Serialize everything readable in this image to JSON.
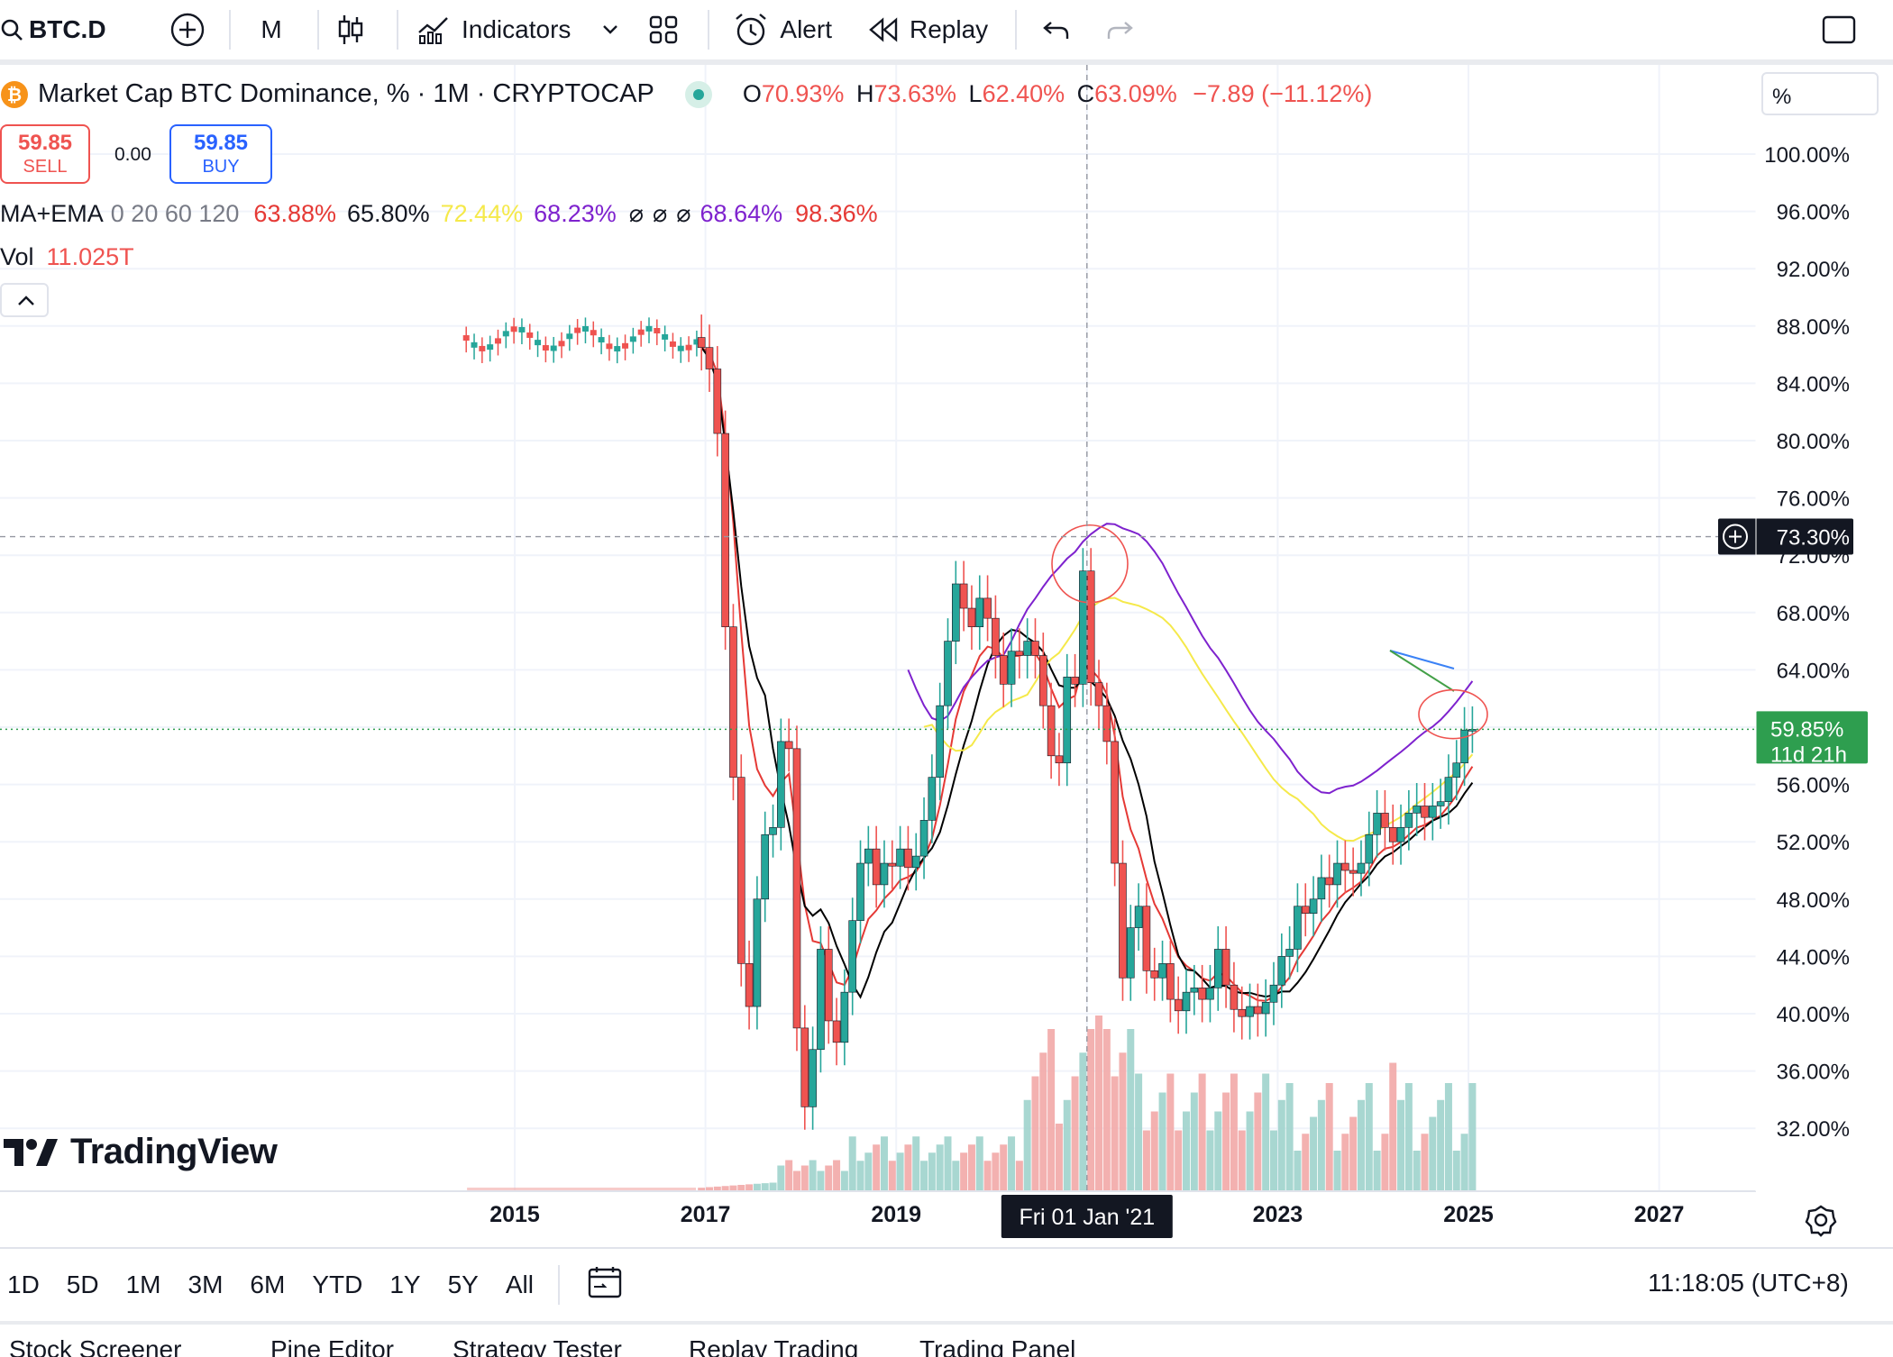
{
  "toolbar": {
    "symbol": "BTC.D",
    "interval": "M",
    "indicators_label": "Indicators",
    "alert_label": "Alert",
    "replay_label": "Replay"
  },
  "legend": {
    "title": "Market Cap BTC Dominance, % · 1M · CRYPTOCAP",
    "open_label": "O",
    "open": "70.93%",
    "high_label": "H",
    "high": "73.63%",
    "low_label": "L",
    "low": "62.40%",
    "close_label": "C",
    "close": "63.09%",
    "change": "−7.89 (−11.12%)",
    "sell_price": "59.85",
    "sell_label": "SELL",
    "spread": "0.00",
    "buy_price": "59.85",
    "buy_label": "BUY",
    "ma_label": "MA+EMA",
    "ma_params": "0 20 60 120",
    "ma_values": [
      "63.88%",
      "65.80%",
      "72.44%",
      "68.23%",
      "68.64%",
      "98.36%"
    ],
    "vol_label": "Vol",
    "vol_value": "11.025T",
    "scale_mode": "%"
  },
  "colors": {
    "up": "#26a69a",
    "down": "#ef5350",
    "ma1": "#e53935",
    "ma2": "#000000",
    "ma3": "#f5e94a",
    "ma4": "#7e22ce",
    "ma5": "#3b82f6",
    "ma6": "#43a047",
    "vol_up": "#9fd3cc",
    "vol_down": "#f2a9a7",
    "price_line": "#2e9e4f"
  },
  "price_axis": {
    "ticks": [
      "100.00%",
      "96.00%",
      "92.00%",
      "88.00%",
      "84.00%",
      "80.00%",
      "76.00%",
      "72.00%",
      "68.00%",
      "64.00%",
      "60.00%",
      "56.00%",
      "52.00%",
      "48.00%",
      "44.00%",
      "40.00%",
      "36.00%",
      "32.00%"
    ],
    "crosshair_label": "73.30%",
    "current_label": "59.85%",
    "countdown": "11d 21h"
  },
  "time_axis": {
    "ticks": [
      "2015",
      "2017",
      "2019",
      "2023",
      "2025",
      "2027"
    ],
    "crosshair_label": "Fri 01 Jan '21"
  },
  "watermark": "TradingView",
  "bottom": {
    "ranges": [
      "1D",
      "5D",
      "1M",
      "3M",
      "6M",
      "YTD",
      "1Y",
      "5Y",
      "All"
    ],
    "clock": "11:18:05 (UTC+8)"
  },
  "panels": [
    "Stock Screener",
    "Pine Editor",
    "Strategy Tester",
    "Replay Trading",
    "Trading Panel"
  ],
  "chart_data": {
    "type": "candlestick",
    "title": "Market Cap BTC Dominance, % · 1M · CRYPTOCAP",
    "ylim": [
      30,
      103
    ],
    "y_unit": "%",
    "x_ticks": [
      "2015",
      "2017",
      "2019",
      "2023",
      "2025",
      "2027"
    ],
    "series": [
      {
        "name": "BTC.D",
        "points": [
          {
            "d": "2016-12",
            "o": 87.2,
            "c": 86.5
          },
          {
            "d": "2017-01",
            "o": 86.5,
            "c": 85.0
          },
          {
            "d": "2017-02",
            "o": 85.0,
            "c": 80.5
          },
          {
            "d": "2017-03",
            "o": 80.5,
            "c": 67.0
          },
          {
            "d": "2017-04",
            "o": 67.0,
            "c": 56.5
          },
          {
            "d": "2017-05",
            "o": 56.5,
            "c": 43.5
          },
          {
            "d": "2017-06",
            "o": 43.5,
            "c": 40.5
          },
          {
            "d": "2017-07",
            "o": 40.5,
            "c": 48.0
          },
          {
            "d": "2017-08",
            "o": 48.0,
            "c": 52.5
          },
          {
            "d": "2017-09",
            "o": 52.5,
            "c": 53.0
          },
          {
            "d": "2017-10",
            "o": 53.0,
            "c": 59.0
          },
          {
            "d": "2017-11",
            "o": 59.0,
            "c": 58.5
          },
          {
            "d": "2017-12",
            "o": 58.5,
            "c": 39.0
          },
          {
            "d": "2018-01",
            "o": 39.0,
            "c": 33.5
          },
          {
            "d": "2018-02",
            "o": 33.5,
            "c": 37.5
          },
          {
            "d": "2018-03",
            "o": 37.5,
            "c": 44.5
          },
          {
            "d": "2018-04",
            "o": 44.5,
            "c": 39.5
          },
          {
            "d": "2018-05",
            "o": 39.5,
            "c": 38.0
          },
          {
            "d": "2018-06",
            "o": 38.0,
            "c": 41.5
          },
          {
            "d": "2018-07",
            "o": 41.5,
            "c": 46.5
          },
          {
            "d": "2018-08",
            "o": 46.5,
            "c": 50.5
          },
          {
            "d": "2018-09",
            "o": 50.5,
            "c": 51.5
          },
          {
            "d": "2018-10",
            "o": 51.5,
            "c": 49.0
          },
          {
            "d": "2018-11",
            "o": 49.0,
            "c": 50.5
          },
          {
            "d": "2018-12",
            "o": 50.5,
            "c": 50.3
          },
          {
            "d": "2019-01",
            "o": 50.3,
            "c": 51.5
          },
          {
            "d": "2019-02",
            "o": 51.5,
            "c": 50.2
          },
          {
            "d": "2019-03",
            "o": 50.2,
            "c": 51.0
          },
          {
            "d": "2019-04",
            "o": 51.0,
            "c": 53.5
          },
          {
            "d": "2019-05",
            "o": 53.5,
            "c": 56.5
          },
          {
            "d": "2019-06",
            "o": 56.5,
            "c": 61.5
          },
          {
            "d": "2019-07",
            "o": 61.5,
            "c": 66.0
          },
          {
            "d": "2019-08",
            "o": 66.0,
            "c": 70.0
          },
          {
            "d": "2019-09",
            "o": 70.0,
            "c": 68.3
          },
          {
            "d": "2019-10",
            "o": 68.3,
            "c": 67.0
          },
          {
            "d": "2019-11",
            "o": 67.0,
            "c": 69.0
          },
          {
            "d": "2019-12",
            "o": 69.0,
            "c": 67.6
          },
          {
            "d": "2020-01",
            "o": 67.6,
            "c": 65.0
          },
          {
            "d": "2020-02",
            "o": 65.0,
            "c": 63.0
          },
          {
            "d": "2020-03",
            "o": 63.0,
            "c": 65.3
          },
          {
            "d": "2020-04",
            "o": 65.3,
            "c": 65.0
          },
          {
            "d": "2020-05",
            "o": 65.0,
            "c": 66.0
          },
          {
            "d": "2020-06",
            "o": 66.0,
            "c": 65.0
          },
          {
            "d": "2020-07",
            "o": 65.0,
            "c": 61.5
          },
          {
            "d": "2020-08",
            "o": 61.5,
            "c": 58.0
          },
          {
            "d": "2020-09",
            "o": 58.0,
            "c": 57.5
          },
          {
            "d": "2020-10",
            "o": 57.5,
            "c": 63.5
          },
          {
            "d": "2020-11",
            "o": 63.5,
            "c": 63.0
          },
          {
            "d": "2020-12",
            "o": 63.0,
            "c": 70.9
          },
          {
            "d": "2021-01",
            "o": 70.9,
            "c": 63.1
          },
          {
            "d": "2021-02",
            "o": 63.1,
            "c": 61.5
          },
          {
            "d": "2021-03",
            "o": 61.5,
            "c": 59.0
          },
          {
            "d": "2021-04",
            "o": 59.0,
            "c": 50.5
          },
          {
            "d": "2021-05",
            "o": 50.5,
            "c": 42.5
          },
          {
            "d": "2021-06",
            "o": 42.5,
            "c": 46.0
          },
          {
            "d": "2021-07",
            "o": 46.0,
            "c": 47.5
          },
          {
            "d": "2021-08",
            "o": 47.5,
            "c": 43.0
          },
          {
            "d": "2021-09",
            "o": 43.0,
            "c": 42.5
          },
          {
            "d": "2021-10",
            "o": 42.5,
            "c": 43.5
          },
          {
            "d": "2021-11",
            "o": 43.5,
            "c": 41.0
          },
          {
            "d": "2021-12",
            "o": 41.0,
            "c": 40.2
          },
          {
            "d": "2022-01",
            "o": 40.2,
            "c": 41.5
          },
          {
            "d": "2022-02",
            "o": 41.5,
            "c": 41.8
          },
          {
            "d": "2022-03",
            "o": 41.8,
            "c": 41.0
          },
          {
            "d": "2022-04",
            "o": 41.0,
            "c": 41.8
          },
          {
            "d": "2022-05",
            "o": 41.8,
            "c": 44.5
          },
          {
            "d": "2022-06",
            "o": 44.5,
            "c": 42.0
          },
          {
            "d": "2022-07",
            "o": 42.0,
            "c": 40.3
          },
          {
            "d": "2022-08",
            "o": 40.3,
            "c": 39.8
          },
          {
            "d": "2022-09",
            "o": 39.8,
            "c": 40.5
          },
          {
            "d": "2022-10",
            "o": 40.5,
            "c": 40.0
          },
          {
            "d": "2022-11",
            "o": 40.0,
            "c": 40.8
          },
          {
            "d": "2022-12",
            "o": 40.8,
            "c": 42.0
          },
          {
            "d": "2023-01",
            "o": 42.0,
            "c": 44.0
          },
          {
            "d": "2023-02",
            "o": 44.0,
            "c": 44.5
          },
          {
            "d": "2023-03",
            "o": 44.5,
            "c": 47.5
          },
          {
            "d": "2023-04",
            "o": 47.5,
            "c": 47.0
          },
          {
            "d": "2023-05",
            "o": 47.0,
            "c": 48.0
          },
          {
            "d": "2023-06",
            "o": 48.0,
            "c": 49.5
          },
          {
            "d": "2023-07",
            "o": 49.5,
            "c": 49.0
          },
          {
            "d": "2023-08",
            "o": 49.0,
            "c": 50.5
          },
          {
            "d": "2023-09",
            "o": 50.5,
            "c": 50.0
          },
          {
            "d": "2023-10",
            "o": 50.0,
            "c": 49.8
          },
          {
            "d": "2023-11",
            "o": 49.8,
            "c": 50.5
          },
          {
            "d": "2023-12",
            "o": 50.5,
            "c": 52.5
          },
          {
            "d": "2024-01",
            "o": 52.5,
            "c": 54.0
          },
          {
            "d": "2024-02",
            "o": 54.0,
            "c": 53.0
          },
          {
            "d": "2024-03",
            "o": 53.0,
            "c": 52.0
          },
          {
            "d": "2024-04",
            "o": 52.0,
            "c": 53.0
          },
          {
            "d": "2024-05",
            "o": 53.0,
            "c": 54.0
          },
          {
            "d": "2024-06",
            "o": 54.0,
            "c": 54.5
          },
          {
            "d": "2024-07",
            "o": 54.5,
            "c": 53.7
          },
          {
            "d": "2024-08",
            "o": 53.7,
            "c": 54.5
          },
          {
            "d": "2024-09",
            "o": 54.5,
            "c": 54.8
          },
          {
            "d": "2024-10",
            "o": 54.8,
            "c": 56.5
          },
          {
            "d": "2024-11",
            "o": 56.5,
            "c": 57.5
          },
          {
            "d": "2024-12",
            "o": 57.5,
            "c": 59.8
          },
          {
            "d": "2025-01",
            "o": 59.8,
            "c": 59.85
          }
        ]
      }
    ]
  }
}
